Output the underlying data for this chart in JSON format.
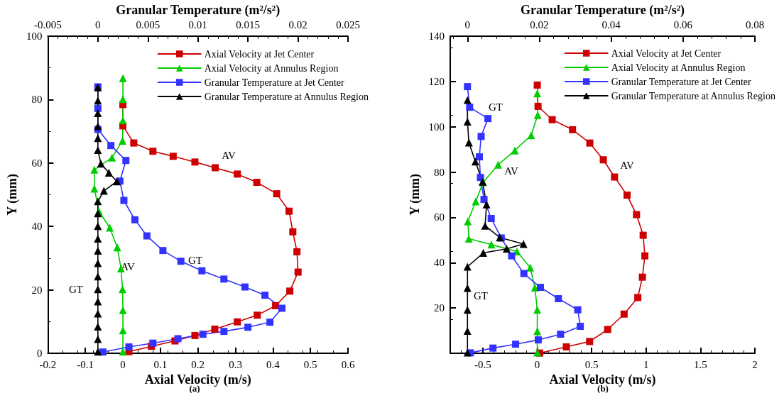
{
  "chart_data": [
    {
      "type": "line",
      "xlabel": "Axial Velocity (m/s)",
      "x2label": "Granular Temperature (m²/s²)",
      "ylabel": "Y (mm)",
      "xlim": [
        -0.2,
        0.6
      ],
      "xticks": [
        -0.2,
        -0.1,
        0,
        0.1,
        0.2,
        0.3,
        0.4,
        0.5,
        0.6
      ],
      "x2lim": [
        -0.005,
        0.025
      ],
      "x2ticks": [
        -0.005,
        0,
        0.005,
        0.01,
        0.015,
        0.02,
        0.025
      ],
      "ylim": [
        0,
        100
      ],
      "yticks": [
        0,
        20,
        40,
        60,
        80,
        100
      ],
      "grid": false,
      "legend": "top right",
      "series": [
        {
          "name": "Axial Velocity at Jet Center",
          "color": "#cc0000",
          "marker": "square",
          "x": [
            0,
            0,
            0.029,
            0.08,
            0.134,
            0.192,
            0.246,
            0.305,
            0.357,
            0.41,
            0.443,
            0.453,
            0.464,
            0.467,
            0.445,
            0.407,
            0.358,
            0.305,
            0.245,
            0.192,
            0.139,
            0.076,
            0.016
          ],
          "values": [
            78.4,
            71.7,
            66.3,
            63.7,
            62.1,
            60.3,
            58.5,
            56.5,
            53.9,
            50.3,
            44.8,
            38.3,
            32.0,
            25.6,
            19.6,
            15.0,
            12.0,
            9.9,
            7.6,
            5.6,
            3.9,
            2.2,
            0.5
          ]
        },
        {
          "name": "Axial Velocity at Annulus Region",
          "color": "#00cc00",
          "marker": "triangle",
          "x": [
            0,
            0,
            0,
            -0.001,
            -0.029,
            -0.076,
            -0.076,
            -0.064,
            -0.035,
            -0.015,
            -0.005,
            -0.001,
            0,
            0,
            0
          ],
          "values": [
            86.7,
            80.1,
            73.4,
            67.0,
            61.7,
            57.9,
            51.9,
            44.8,
            39.6,
            33.4,
            26.7,
            20.2,
            13.6,
            7.2,
            0.5
          ]
        },
        {
          "name": "Granular Temperature at Jet Center",
          "color": "#3333ff",
          "marker": "square",
          "axis": "x2",
          "x": [
            0,
            0,
            0,
            0.0013,
            0.0028,
            0.0022,
            0.0026,
            0.0037,
            0.0049,
            0.0065,
            0.0083,
            0.0104,
            0.0126,
            0.0147,
            0.0167,
            0.0184,
            0.0172,
            0.015,
            0.0126,
            0.0105,
            0.008,
            0.0055,
            0.0031,
            0.0005
          ],
          "values": [
            84.0,
            77.2,
            70.6,
            65.5,
            60.8,
            54.3,
            48.2,
            42.1,
            37.0,
            32.4,
            29.0,
            26.0,
            23.4,
            20.9,
            18.3,
            14.2,
            9.8,
            8.2,
            6.9,
            6.0,
            4.6,
            3.2,
            2.0,
            0.4
          ]
        },
        {
          "name": "Granular Temperature at Annulus Region",
          "color": "#000000",
          "marker": "triangle",
          "axis": "x2",
          "x": [
            0,
            0,
            0,
            0,
            0,
            0,
            0.0003,
            0.0011,
            0.0019,
            0.0006,
            0,
            0,
            0,
            0,
            0,
            0,
            0,
            0,
            0,
            0,
            0,
            0,
            0
          ],
          "values": [
            83.8,
            79.7,
            75.7,
            71.6,
            67.8,
            64.1,
            59.8,
            56.9,
            54.2,
            51.2,
            47.9,
            44.1,
            40.1,
            36.1,
            32.3,
            28.4,
            24.2,
            20.2,
            16.3,
            12.5,
            8.4,
            4.5,
            0.5
          ]
        }
      ],
      "annotations": [
        "AV",
        "AV",
        "GT",
        "GT",
        "(a)"
      ]
    },
    {
      "type": "line",
      "xlabel": "Axial Velocity (m/s)",
      "x2label": "Granular Temperature (m²/s²)",
      "ylabel": "Y (mm)",
      "xlim": [
        -0.8,
        2
      ],
      "xticks": [
        -0.5,
        0,
        0.5,
        1,
        1.5,
        2
      ],
      "x2lim": [
        -0.0048,
        0.08
      ],
      "x2ticks": [
        0,
        0.02,
        0.04,
        0.06,
        0.08
      ],
      "ylim": [
        0,
        140
      ],
      "yticks": [
        20,
        40,
        60,
        80,
        100,
        120,
        140
      ],
      "grid": false,
      "legend": "top right",
      "series": [
        {
          "name": "Axial Velocity at Jet Center",
          "color": "#cc0000",
          "marker": "square",
          "x": [
            0,
            0.007,
            0.137,
            0.324,
            0.483,
            0.607,
            0.71,
            0.825,
            0.912,
            0.973,
            0.989,
            0.966,
            0.924,
            0.798,
            0.647,
            0.481,
            0.267,
            0.022
          ],
          "values": [
            118.4,
            109.0,
            103.1,
            98.7,
            92.8,
            85.4,
            77.8,
            69.8,
            61.2,
            52.1,
            43.0,
            33.6,
            24.6,
            17.3,
            10.5,
            5.2,
            2.8,
            0.1
          ]
        },
        {
          "name": "Axial Velocity at Annulus Region",
          "color": "#00cc00",
          "marker": "triangle",
          "x": [
            0,
            0.004,
            -0.056,
            -0.207,
            -0.36,
            -0.497,
            -0.566,
            -0.638,
            -0.629,
            -0.422,
            -0.187,
            -0.065,
            -0.022,
            0,
            0,
            0
          ],
          "values": [
            114.7,
            105.1,
            96.2,
            89.5,
            83.2,
            75.5,
            67.0,
            58.2,
            50.6,
            48.0,
            44.9,
            37.8,
            29.0,
            19.2,
            9.7,
            0.3
          ]
        },
        {
          "name": "Granular Temperature at Jet Center",
          "color": "#3333ff",
          "marker": "square",
          "axis": "x2",
          "x": [
            0,
            0.0006,
            0.0057,
            0.0038,
            0.0033,
            0.0036,
            0.0046,
            0.0066,
            0.0094,
            0.0123,
            0.0157,
            0.0203,
            0.0253,
            0.0307,
            0.0314,
            0.0259,
            0.0197,
            0.0134,
            0.0071,
            0.0008
          ],
          "values": [
            117.7,
            108.6,
            103.6,
            95.7,
            86.7,
            77.6,
            67.9,
            59.5,
            50.9,
            43.0,
            35.2,
            29.1,
            24.1,
            19.2,
            11.9,
            8.4,
            5.9,
            4.0,
            2.3,
            0.2
          ]
        },
        {
          "name": "Granular Temperature at Annulus Region",
          "color": "#000000",
          "marker": "triangle",
          "axis": "x2",
          "x": [
            0,
            0,
            0.0004,
            0.0022,
            0.0042,
            0.0053,
            0.0049,
            0.009,
            0.0156,
            0.0109,
            0.0044,
            0,
            0,
            0,
            0,
            0
          ],
          "values": [
            111.8,
            102.2,
            93.0,
            84.6,
            75.7,
            65.7,
            56.3,
            51.1,
            48.2,
            46.1,
            44.3,
            38.2,
            28.8,
            19.2,
            9.9,
            0.3
          ]
        }
      ],
      "annotations": [
        "GT",
        "AV",
        "AV",
        "GT",
        "(b)"
      ]
    }
  ]
}
